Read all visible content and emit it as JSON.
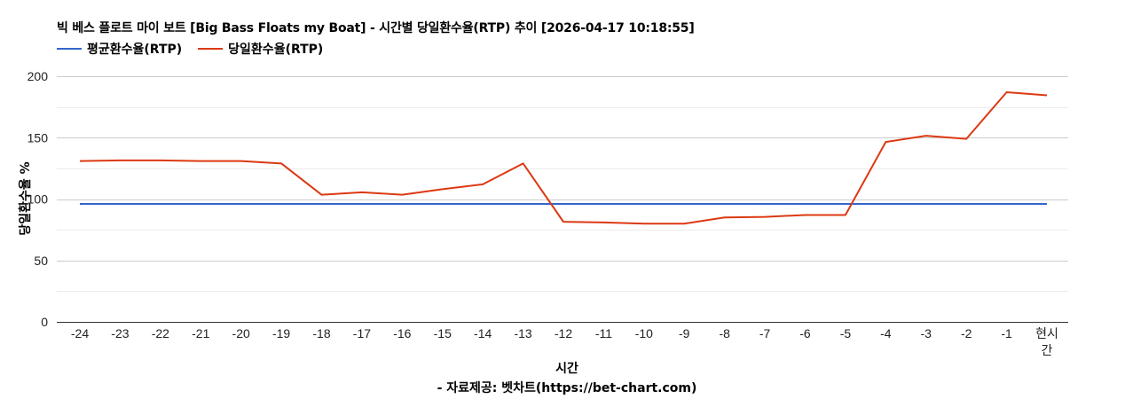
{
  "header": {
    "title": "빅 베스 플로트 마이 보트 [Big Bass Floats my Boat] - 시간별 당일환수율(RTP) 추이 [2026-04-17 10:18:55]"
  },
  "legend": [
    {
      "label": "평균환수율(RTP)",
      "color": "#3366cc"
    },
    {
      "label": "당일환수율(RTP)",
      "color": "#dc3912"
    }
  ],
  "axes": {
    "xlabel": "시간",
    "ylabel": "당일환수율 %",
    "source": "- 자료제공: 벳차트(https://bet-chart.com)"
  },
  "chart_data": {
    "type": "line",
    "title": "빅 베스 플로트 마이 보트 [Big Bass Floats my Boat] - 시간별 당일환수율(RTP) 추이 [2026-04-17 10:18:55]",
    "xlabel": "시간",
    "ylabel": "당일환수율 %",
    "ylim": [
      0,
      200
    ],
    "yticks": [
      0,
      50,
      100,
      150,
      200
    ],
    "grid": true,
    "legend_position": "top",
    "categories": [
      "-24",
      "-23",
      "-22",
      "-21",
      "-20",
      "-19",
      "-18",
      "-17",
      "-16",
      "-15",
      "-14",
      "-13",
      "-12",
      "-11",
      "-10",
      "-9",
      "-8",
      "-7",
      "-6",
      "-5",
      "-4",
      "-3",
      "-2",
      "-1",
      "현시간"
    ],
    "series": [
      {
        "name": "평균환수율(RTP)",
        "color": "#3366cc",
        "values": [
          96,
          96,
          96,
          96,
          96,
          96,
          96,
          96,
          96,
          96,
          96,
          96,
          96,
          96,
          96,
          96,
          96,
          96,
          96,
          96,
          96,
          96,
          96,
          96,
          96
        ]
      },
      {
        "name": "당일환수율(RTP)",
        "color": "#dc3912",
        "values": [
          131,
          131.5,
          131.5,
          131,
          131,
          129,
          103.5,
          105.5,
          103.5,
          108,
          112,
          129,
          81.5,
          81,
          80,
          80,
          85,
          85.5,
          87,
          87,
          146.5,
          151.5,
          149,
          187,
          184.5
        ]
      }
    ]
  }
}
